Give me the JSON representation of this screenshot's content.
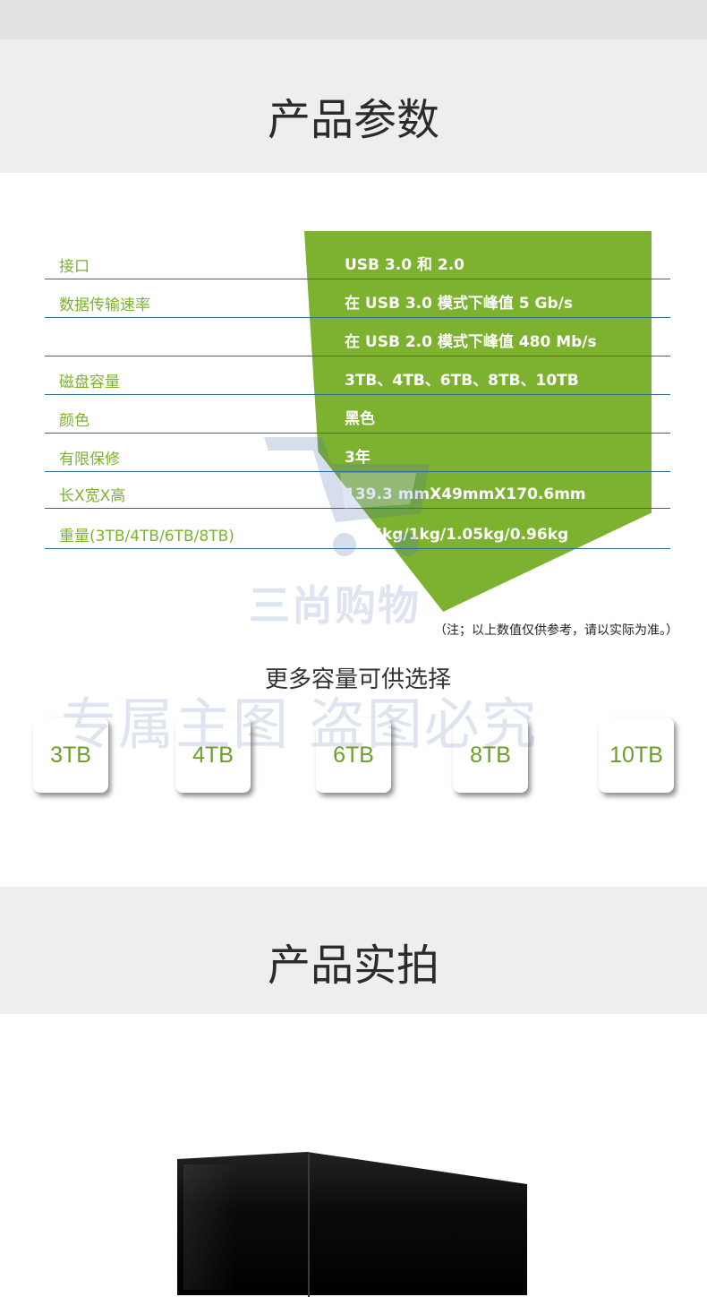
{
  "section_params": {
    "title": "产品参数"
  },
  "specs": [
    {
      "label": "接口",
      "value": "USB 3.0 和 2.0"
    },
    {
      "label": "数据传输速率",
      "value": "在 USB 3.0 模式下峰值 5 Gb/s"
    },
    {
      "label": "",
      "value": "在 USB 2.0 模式下峰值 480 Mb/s"
    },
    {
      "label": "磁盘容量",
      "value": "3TB、4TB、6TB、8TB、10TB"
    },
    {
      "label": "颜色",
      "value": "黑色"
    },
    {
      "label": "有限保修",
      "value": "3年"
    },
    {
      "label": "长X宽X高",
      "value": "139.3 mmX49mmX170.6mm"
    },
    {
      "label": "重量(3TB/4TB/6TB/8TB)",
      "value": "0.96kg/1kg/1.05kg/0.96kg"
    }
  ],
  "note": "（注；以上数值仅供参考，请以实际为准。）",
  "more_capacity": {
    "title": "更多容量可供选择",
    "options": [
      "3TB",
      "4TB",
      "6TB",
      "8TB",
      "10TB"
    ]
  },
  "watermark": {
    "shop_name": "三尚购物",
    "text": "专属主图  盗图必究"
  },
  "section_photos": {
    "title": "产品实拍"
  },
  "colors": {
    "accent_green": "#7cb230",
    "line_blue": "#2c6c93",
    "band_gray": "#eeeeee"
  }
}
